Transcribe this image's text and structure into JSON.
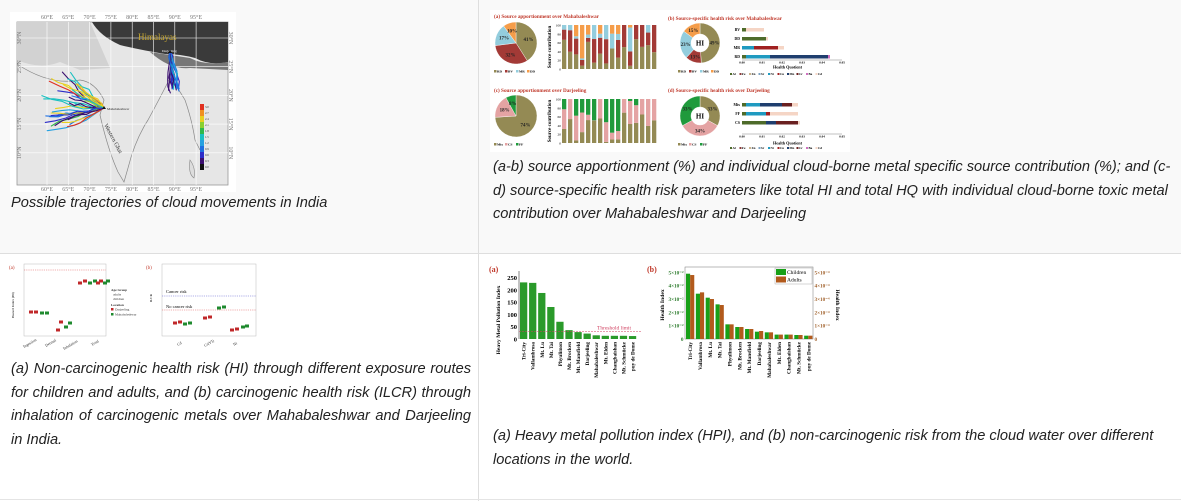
{
  "cells": [
    {
      "caption": "Possible trajectories of cloud movements in India",
      "figure": {
        "lon_ticks": [
          "60°E",
          "65°E",
          "70°E",
          "75°E",
          "80°E",
          "85°E",
          "90°E",
          "95°E"
        ],
        "lat_ticks": [
          "30°N",
          "25°N",
          "20°N",
          "15°N",
          "10°N"
        ],
        "region_label": "Himalayas",
        "coast_label": "Western Ghat",
        "site_labels": [
          "Darjeeling",
          "Mahabaleshwar"
        ],
        "colorbar_ticks": [
          "3.0",
          "2.7",
          "2.4",
          "2.1",
          "1.8",
          "1.5",
          "1.2",
          "0.9",
          "0.6",
          "0.3",
          "0.0"
        ]
      }
    },
    {
      "caption": " (a-b) source apportionment (%) and individual cloud-borne metal specific source contribution (%); and (c-d) source-specific health risk parameters like total HI and total HQ with individual cloud-borne toxic metal contribution over Mahabaleshwar and Darjeeling",
      "figure": {
        "panel_a_title": "(a) Source apportionment over Mahabaleshwar",
        "panel_b_title": "(b) Source-specific health risk over Mahabaleshwar",
        "panel_c_title": "(c) Source apportionment over Darjeeling",
        "panel_d_title": "(d) Source-specific health risk over Darjeeling",
        "ylabel": "Source contribution",
        "xlabel_hq": "Health Quotient",
        "donut_label": "HI",
        "mahabaleshwar_sources": [
          {
            "name": "RD",
            "pct_apportionment": 41,
            "pct_hi": 49,
            "color": "#948a54"
          },
          {
            "name": "BV",
            "pct_apportionment": 32,
            "pct_hi": 13,
            "color": "#a33a36"
          },
          {
            "name": "MR",
            "pct_apportionment": 17,
            "pct_hi": 23,
            "color": "#93cddd"
          },
          {
            "name": "DD",
            "pct_apportionment": 10,
            "pct_hi": 15,
            "color": "#f59d4a"
          }
        ],
        "darjeeling_sources": [
          {
            "name": "Mix",
            "pct_apportionment": 74,
            "pct_hi": 33,
            "color": "#948a54"
          },
          {
            "name": "CS",
            "pct_apportionment": 18,
            "pct_hi": 34,
            "color": "#e4a3a3"
          },
          {
            "name": "FF",
            "pct_apportionment": 8,
            "pct_hi": 33,
            "color": "#1f9a3c"
          }
        ],
        "metals_legend": [
          "Al",
          "Fe",
          "Zn",
          "Sr",
          "Ni",
          "Cu",
          "Mn",
          "Cr",
          "Ba",
          "Cd"
        ],
        "hq_ticks": [
          "0.00",
          "0.01",
          "0.02",
          "0.03",
          "0.04",
          "0.05"
        ]
      }
    },
    {
      "caption": " (a) Non-carcinogenic health risk (HI) through different exposure routes for children and adults, and (b) carcinogenic health risk (ILCR) through inhalation of carcinogenic metals over Mahabaleshwar and Darjeeling in India.",
      "figure": {
        "panel_a": "(a)",
        "panel_b": "(b)",
        "ylabel_a": "Hazard Index (HI)",
        "ylabel_b": "ILCR",
        "routes": [
          "Ingestion",
          "Dermal",
          "Inhalation",
          "Total"
        ],
        "metals": [
          "Cd",
          "Cr(VI)",
          "Ni"
        ],
        "legend_age_title": "Age Group",
        "legend_age": [
          "adults",
          "children"
        ],
        "legend_loc_title": "Location",
        "legend_loc": [
          "Darjeeling",
          "Mahabaleshwar"
        ],
        "cancer_risk": "Cancer risk",
        "no_cancer_risk": "No cancer risk"
      }
    },
    {
      "caption": " (a) Heavy metal pollution index (HPI), and (b) non-carcinogenic risk from the cloud water over different locations in the world.",
      "figure": {
        "panel_a": "(a)",
        "panel_b": "(b)"
      }
    }
  ],
  "chart_data": [
    {
      "type": "bar",
      "title": "(a)",
      "ylabel": "Heavy Metal Pollution Index",
      "ylim": [
        0,
        260
      ],
      "yticks": [
        "0",
        "50",
        "100",
        "150",
        "200",
        "250"
      ],
      "categories": [
        "Tri-City",
        "Vallambrosa",
        "Mt. Lu",
        "Mt. Tai",
        "Phyulimon",
        "Mt. Brocken",
        "Mt. Mansfield",
        "Darjeeling",
        "Mahabaleshwar",
        "Mt. Elden",
        "Changbaishan",
        "Mt. Schmücke",
        "puy de Dome"
      ],
      "values": [
        230,
        228,
        187,
        130,
        70,
        36,
        28,
        22,
        15,
        13,
        13,
        13,
        12
      ],
      "threshold": 30,
      "threshold_label": "Threshold limit",
      "color": "#2a9a2a"
    },
    {
      "type": "bar",
      "title": "(b)",
      "ylabel": "Health Index",
      "y2label": "Health Index",
      "yticks": [
        "0",
        "1×10⁻²",
        "2×10⁻²",
        "3×10⁻²",
        "4×10⁻²",
        "5×10⁻²"
      ],
      "y2ticks": [
        "0",
        "1×10⁻⁴",
        "2×10⁻⁴",
        "3×10⁻⁴",
        "4×10⁻⁴",
        "5×10⁻⁴"
      ],
      "categories": [
        "Tri-City",
        "Vallambrosa",
        "Mt. Lu",
        "Mt. Tai",
        "Phyulimon",
        "Mt. Brocken",
        "Mt. Mansfield",
        "Darjeeling",
        "Mahabaleshwar",
        "Mt. Elden",
        "Changbaishan",
        "Mt. Schmücke",
        "puy de Dome"
      ],
      "legend": "top-right",
      "series": [
        {
          "name": "Children",
          "axis": "left",
          "unit_scale": 0.01,
          "values": [
            4.9,
            3.4,
            3.1,
            2.6,
            1.1,
            0.9,
            0.75,
            0.55,
            0.5,
            0.33,
            0.33,
            0.3,
            0.25
          ],
          "color": "#18a018"
        },
        {
          "name": "Adults",
          "axis": "right",
          "unit_scale": 0.0001,
          "values": [
            4.8,
            3.5,
            3.0,
            2.55,
            1.1,
            0.9,
            0.75,
            0.6,
            0.5,
            0.33,
            0.33,
            0.3,
            0.25
          ],
          "color": "#b25a1c"
        }
      ]
    }
  ]
}
